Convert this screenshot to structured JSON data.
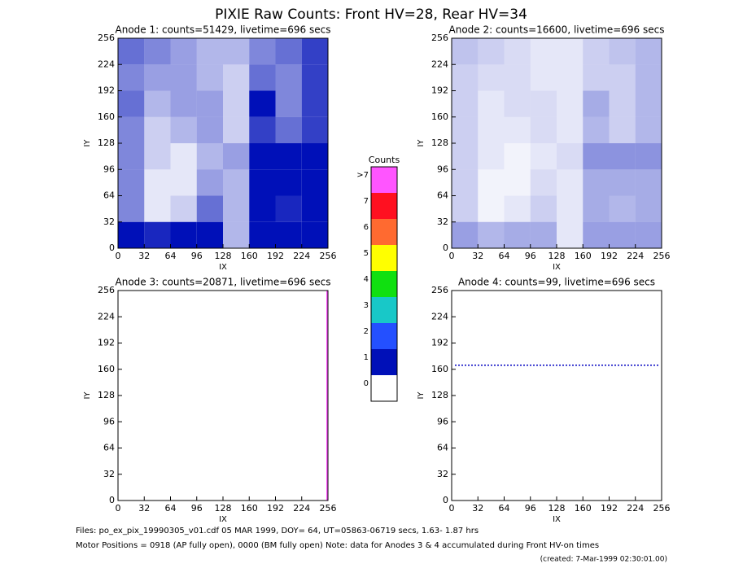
{
  "title": "PIXIE Raw Counts:  Front HV=28, Rear HV=34",
  "chart_data": [
    {
      "type": "heatmap",
      "title": "Anode 1: counts=51429, livetime=696 secs",
      "xlabel": "IX",
      "ylabel": "IY",
      "xlim": [
        0,
        256
      ],
      "ylim": [
        0,
        256
      ],
      "xticks": [
        0,
        32,
        64,
        96,
        128,
        160,
        192,
        224,
        256
      ],
      "yticks": [
        0,
        32,
        64,
        96,
        128,
        160,
        192,
        224,
        256
      ],
      "z": [
        [
          0.6,
          0.5,
          0.4,
          0.3,
          0.3,
          0.5,
          0.6,
          0.8
        ],
        [
          0.5,
          0.4,
          0.4,
          0.3,
          0.2,
          0.6,
          0.5,
          0.8
        ],
        [
          0.6,
          0.3,
          0.4,
          0.4,
          0.2,
          1.0,
          0.5,
          0.8
        ],
        [
          0.5,
          0.2,
          0.3,
          0.4,
          0.2,
          0.8,
          0.6,
          0.8
        ],
        [
          0.5,
          0.2,
          0.1,
          0.3,
          0.4,
          1.2,
          1.2,
          1.2
        ],
        [
          0.5,
          0.1,
          0.1,
          0.4,
          0.3,
          1.0,
          1.0,
          1.0
        ],
        [
          0.5,
          0.1,
          0.2,
          0.6,
          0.3,
          1.0,
          0.9,
          1.0
        ],
        [
          1.1,
          0.9,
          1.0,
          1.0,
          0.3,
          1.2,
          1.1,
          1.2
        ]
      ]
    },
    {
      "type": "heatmap",
      "title": "Anode 2: counts=16600, livetime=696 secs",
      "xlabel": "IX",
      "ylabel": "IY",
      "xlim": [
        0,
        256
      ],
      "ylim": [
        0,
        256
      ],
      "xticks": [
        0,
        32,
        64,
        96,
        128,
        160,
        192,
        224,
        256
      ],
      "yticks": [
        0,
        32,
        64,
        96,
        128,
        160,
        192,
        224,
        256
      ],
      "z": [
        [
          0.25,
          0.2,
          0.15,
          0.1,
          0.1,
          0.2,
          0.25,
          0.3
        ],
        [
          0.2,
          0.15,
          0.15,
          0.1,
          0.1,
          0.2,
          0.2,
          0.3
        ],
        [
          0.2,
          0.1,
          0.15,
          0.15,
          0.1,
          0.35,
          0.2,
          0.3
        ],
        [
          0.2,
          0.1,
          0.1,
          0.15,
          0.1,
          0.3,
          0.2,
          0.3
        ],
        [
          0.2,
          0.1,
          0.05,
          0.1,
          0.15,
          0.45,
          0.45,
          0.45
        ],
        [
          0.2,
          0.05,
          0.05,
          0.15,
          0.1,
          0.35,
          0.35,
          0.35
        ],
        [
          0.2,
          0.05,
          0.1,
          0.2,
          0.1,
          0.35,
          0.3,
          0.35
        ],
        [
          0.4,
          0.3,
          0.35,
          0.35,
          0.1,
          0.4,
          0.4,
          0.4
        ]
      ]
    },
    {
      "type": "heatmap",
      "title": "Anode 3: counts=20871, livetime=696 secs",
      "xlabel": "IX",
      "ylabel": "IY",
      "xlim": [
        0,
        256
      ],
      "ylim": [
        0,
        256
      ],
      "xticks": [
        0,
        32,
        64,
        96,
        128,
        160,
        192,
        224,
        256
      ],
      "yticks": [
        0,
        32,
        64,
        96,
        128,
        160,
        192,
        224,
        256
      ],
      "vline_x": 255,
      "line_color": "#ff55ff"
    },
    {
      "type": "heatmap",
      "title": "Anode 4: counts=99, livetime=696 secs",
      "xlabel": "IX",
      "ylabel": "IY",
      "xlim": [
        0,
        256
      ],
      "ylim": [
        0,
        256
      ],
      "xticks": [
        0,
        32,
        64,
        96,
        128,
        160,
        192,
        224,
        256
      ],
      "yticks": [
        0,
        32,
        64,
        96,
        128,
        160,
        192,
        224,
        256
      ],
      "hline_y": 165,
      "line_color": "#0000c0"
    }
  ],
  "colorbar": {
    "title": "Counts",
    "labels": [
      "0",
      "1",
      "2",
      "3",
      "4",
      "5",
      "6",
      "7",
      ">7"
    ],
    "colors": [
      "#ffffff",
      "#0010b8",
      "#2450ff",
      "#18c8c8",
      "#10e010",
      "#ffff00",
      "#ff6a30",
      "#ff1020",
      "#ff55ff"
    ]
  },
  "footer": [
    "Files: po_ex_pix_19990305_v01.cdf    05 MAR 1999, DOY= 64, UT=05863-06719 secs,  1.63- 1.87 hrs",
    "Motor Positions = 0918 (AP fully open), 0000 (BM fully open)    Note: data for Anodes 3 & 4 accumulated during Front HV-on times",
    "(created:  7-Mar-1999 02:30:01.00)"
  ]
}
